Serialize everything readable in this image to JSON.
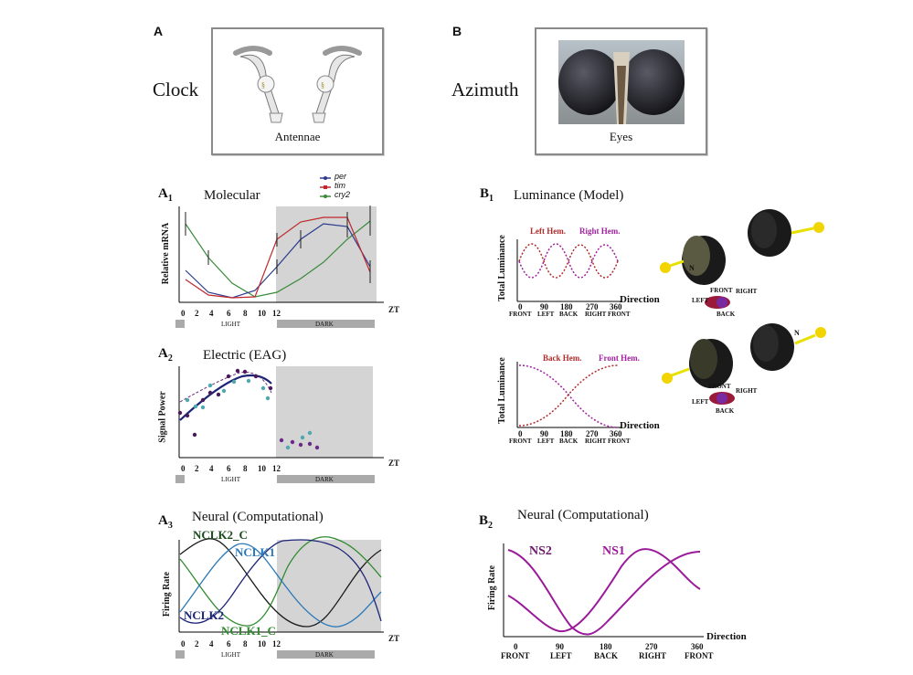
{
  "panel_a": {
    "letter": "A",
    "heading": "Clock",
    "image_caption": "Antennae",
    "a1": {
      "label": "A",
      "sub": "1",
      "title": "Molecular",
      "ylabel": "Relative mRNA",
      "legend": [
        {
          "name": "per",
          "color": "#2b3a8f"
        },
        {
          "name": "tim",
          "color": "#c0282a"
        },
        {
          "name": "cry2",
          "color": "#3a8a3a"
        }
      ]
    },
    "a2": {
      "label": "A",
      "sub": "2",
      "title": "Electric (EAG)",
      "ylabel": "Signal Power"
    },
    "a3": {
      "label": "A",
      "sub": "3",
      "title": "Neural (Computational)",
      "ylabel": "Firing Rate",
      "curve_labels": {
        "nclk2_c": "NCLK2_C",
        "nclk1": "NCLK1",
        "nclk2": "NCLK2",
        "nclk1_c": "NCLK1_C"
      }
    },
    "time_axis": {
      "ticks": [
        "0",
        "2",
        "4",
        "6",
        "8",
        "10",
        "12"
      ],
      "unit": "ZT",
      "light": "LIGHT",
      "dark": "DARK"
    }
  },
  "panel_b": {
    "letter": "B",
    "heading": "Azimuth",
    "image_caption": "Eyes",
    "b1": {
      "label": "B",
      "sub": "1",
      "title": "Luminance (Model)",
      "ylabel": "Total Luminance",
      "top": {
        "left": "Left Hem.",
        "right": "Right Hem."
      },
      "bottom": {
        "left": "Back Hem.",
        "right": "Front Hem."
      },
      "compass": {
        "front": "FRONT",
        "left": "LEFT",
        "right": "RIGHT",
        "back": "BACK",
        "n": "N"
      }
    },
    "b2": {
      "label": "B",
      "sub": "2",
      "title": "Neural (Computational)",
      "ylabel": "Firing Rate",
      "curve_labels": {
        "ns2": "NS2",
        "ns1": "NS1"
      }
    },
    "direction_axis": {
      "ticks": [
        "0",
        "90",
        "180",
        "270",
        "360"
      ],
      "sublabels": [
        "FRONT",
        "LEFT",
        "BACK",
        "RIGHT",
        "FRONT"
      ],
      "unit": "Direction"
    }
  },
  "colors": {
    "red": "#b02a2a",
    "magenta": "#a020a0",
    "navy": "#1c2478",
    "green": "#2f8a2f",
    "blue": "#2a78b8",
    "black": "#1a1a1a",
    "shade": "#d4d4d4"
  }
}
